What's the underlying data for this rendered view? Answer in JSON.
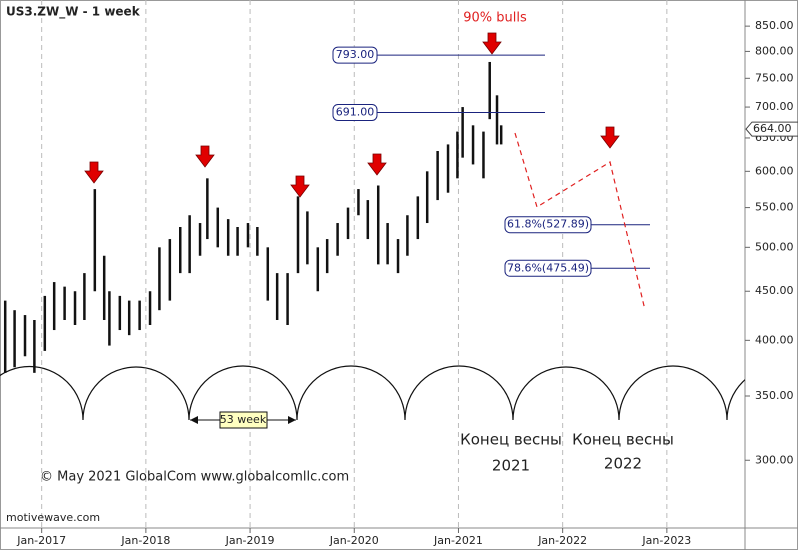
{
  "chart_data": {
    "type": "range-bar",
    "title": "US3.ZW_W - 1 week",
    "color": "#111111",
    "log_scale": true,
    "grid": true,
    "x": [
      2016.65,
      2016.74,
      2016.84,
      2016.93,
      2017.03,
      2017.12,
      2017.22,
      2017.32,
      2017.41,
      2017.51,
      2017.6,
      2017.65,
      2017.75,
      2017.84,
      2017.94,
      2018.04,
      2018.13,
      2018.23,
      2018.33,
      2018.42,
      2018.52,
      2018.59,
      2018.69,
      2018.79,
      2018.88,
      2018.98,
      2019.07,
      2019.17,
      2019.26,
      2019.36,
      2019.46,
      2019.55,
      2019.65,
      2019.74,
      2019.84,
      2019.94,
      2020.04,
      2020.13,
      2020.23,
      2020.32,
      2020.42,
      2020.51,
      2020.61,
      2020.7,
      2020.8,
      2020.9,
      2020.99,
      2021.04,
      2021.14,
      2021.24,
      2021.3,
      2021.37,
      2021.41
    ],
    "low": [
      370,
      375,
      385,
      370,
      390,
      410,
      420,
      415,
      420,
      450,
      420,
      395,
      410,
      405,
      410,
      415,
      430,
      440,
      470,
      470,
      490,
      510,
      500,
      490,
      490,
      500,
      490,
      440,
      420,
      415,
      470,
      480,
      450,
      470,
      490,
      510,
      540,
      510,
      480,
      480,
      470,
      490,
      510,
      530,
      560,
      570,
      590,
      620,
      610,
      590,
      680,
      640,
      640
    ],
    "high": [
      440,
      430,
      425,
      420,
      445,
      460,
      455,
      450,
      470,
      575,
      490,
      450,
      445,
      440,
      440,
      450,
      500,
      510,
      525,
      540,
      530,
      590,
      550,
      535,
      525,
      530,
      525,
      500,
      470,
      470,
      565,
      545,
      500,
      510,
      530,
      550,
      575,
      560,
      580,
      530,
      510,
      540,
      565,
      600,
      630,
      640,
      660,
      700,
      670,
      660,
      780,
      720,
      670
    ],
    "xlim": [
      2016.6,
      2023.75
    ],
    "xticks": [
      {
        "value": 2017,
        "label": "Jan-2017"
      },
      {
        "value": 2018,
        "label": "Jan-2018"
      },
      {
        "value": 2019,
        "label": "Jan-2019"
      },
      {
        "value": 2020,
        "label": "Jan-2020"
      },
      {
        "value": 2021,
        "label": "Jan-2021"
      },
      {
        "value": 2022,
        "label": "Jan-2022"
      },
      {
        "value": 2023,
        "label": "Jan-2023"
      }
    ],
    "ylim": [
      255,
      905
    ],
    "yticks": [
      {
        "value": 300,
        "label": "300.00"
      },
      {
        "value": 350,
        "label": "350.00"
      },
      {
        "value": 400,
        "label": "400.00"
      },
      {
        "value": 450,
        "label": "450.00"
      },
      {
        "value": 500,
        "label": "500.00"
      },
      {
        "value": 550,
        "label": "550.00"
      },
      {
        "value": 600,
        "label": "600.00"
      },
      {
        "value": 650,
        "label": "650.00"
      },
      {
        "value": 700,
        "label": "700.00"
      },
      {
        "value": 750,
        "label": "750.00"
      },
      {
        "value": 800,
        "label": "800.00"
      },
      {
        "value": 850,
        "label": "850.00"
      }
    ],
    "last_price": {
      "value": 664,
      "label": "664.00"
    },
    "levels": [
      {
        "value": 793,
        "label": "793.00"
      },
      {
        "value": 691,
        "label": "691.00"
      }
    ],
    "fib_levels": [
      {
        "value": 527.89,
        "label": "61.8%(527.89)"
      },
      {
        "value": 475.49,
        "label": "78.6%(475.49)"
      }
    ],
    "annotations": {
      "bulls": "90% bulls",
      "cycle": "53 week",
      "spring_end_1": "Конец весны",
      "year_1": "2021",
      "spring_end_2": "Конец весны",
      "year_2": "2022",
      "copyright": "© May 2021 GlobalCom www.globalcomllc.com",
      "source": "motivewave.com"
    }
  }
}
